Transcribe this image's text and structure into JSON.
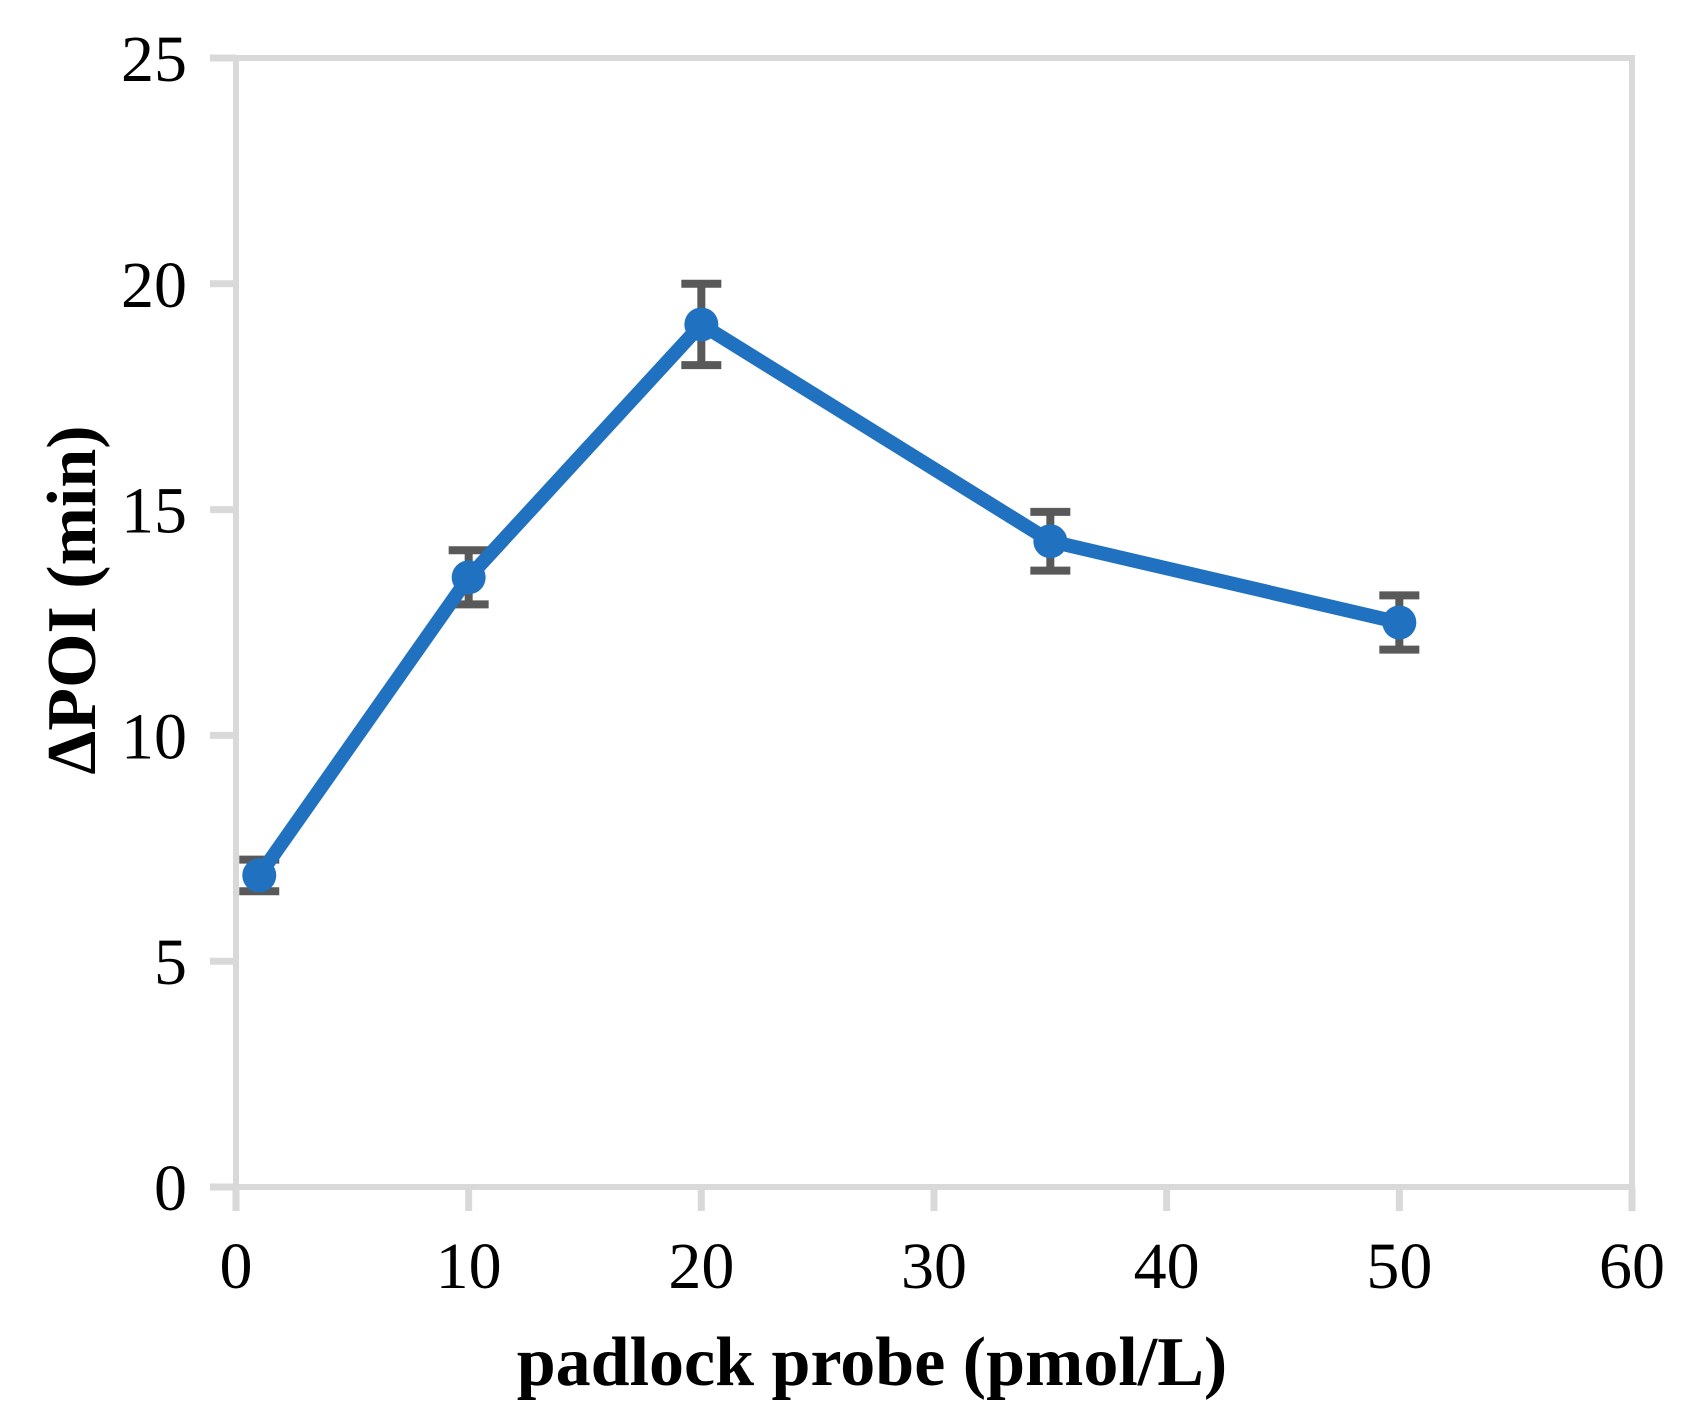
{
  "figure": {
    "kind": "error-bar line chart",
    "background_color": "#ffffff"
  },
  "chart_data": {
    "type": "line",
    "title": "",
    "xlabel": "padlock probe (pmol/L)",
    "ylabel": "ΔPOI (min)",
    "x": [
      1,
      10,
      20,
      35,
      50
    ],
    "y": [
      6.9,
      13.5,
      19.1,
      14.3,
      12.5
    ],
    "y_err": [
      0.35,
      0.6,
      0.9,
      0.65,
      0.6
    ],
    "xlim": [
      0,
      60
    ],
    "ylim": [
      0,
      25
    ],
    "x_ticks": [
      0,
      10,
      20,
      30,
      40,
      50,
      60
    ],
    "y_ticks": [
      0,
      5,
      10,
      15,
      20,
      25
    ],
    "grid": false,
    "legend": null,
    "marker": "circle",
    "series_color": "#2171c1",
    "error_bar_color": "#595959",
    "axis_color": "#d9d9d9",
    "text_color": "#000000"
  }
}
